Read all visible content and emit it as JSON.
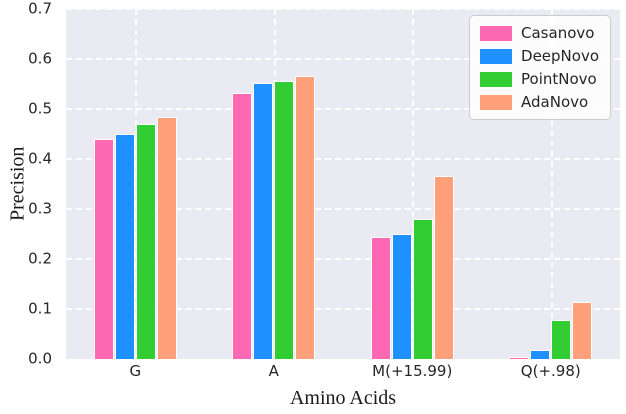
{
  "chart_data": {
    "type": "bar",
    "title": "",
    "xlabel": "Amino Acids",
    "ylabel": "Precision",
    "categories": [
      "G",
      "A",
      "M(+15.99)",
      "Q(+.98)"
    ],
    "series": [
      {
        "name": "Casanovo",
        "color": "#FF69B4",
        "values": [
          0.44,
          0.533,
          0.245,
          0.005
        ]
      },
      {
        "name": "DeepNovo",
        "color": "#1E90FF",
        "values": [
          0.451,
          0.553,
          0.251,
          0.019
        ]
      },
      {
        "name": "PointNovo",
        "color": "#32CD32",
        "values": [
          0.471,
          0.557,
          0.28,
          0.078
        ]
      },
      {
        "name": "AdaNovo",
        "color": "#FFA07A",
        "values": [
          0.484,
          0.567,
          0.367,
          0.114
        ]
      }
    ],
    "ylim": [
      0,
      0.7
    ],
    "yticks": [
      0.0,
      0.1,
      0.2,
      0.3,
      0.4,
      0.5,
      0.6,
      0.7
    ],
    "grid": "dashed-white-horizontal-and-vertical",
    "legend_position": "upper right",
    "plot_background": "#EAEAF2",
    "grid_color": "#FFFFFF",
    "tick_text_color": "#262626",
    "axis_label_color": "#1A1A1A"
  }
}
